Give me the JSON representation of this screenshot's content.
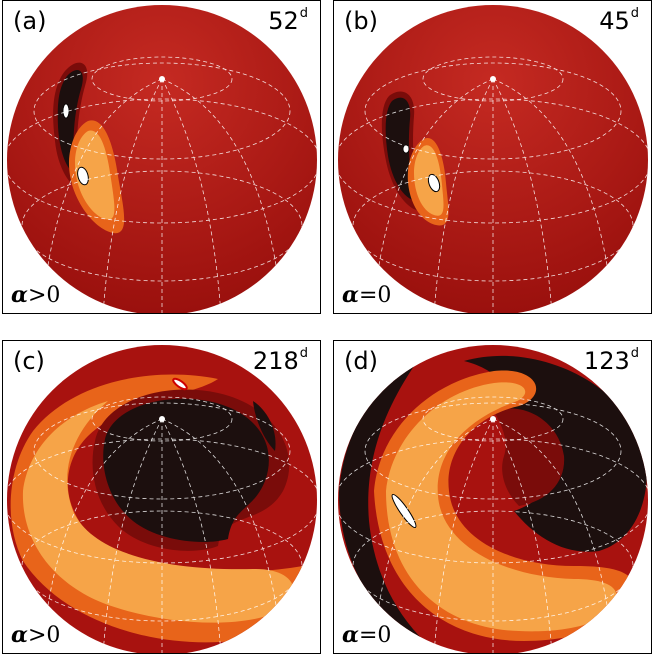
{
  "panels": [
    {
      "tag": "(a)",
      "time": "52",
      "time_unit": "d",
      "alpha_symbol": "α",
      "alpha_rel": ">0"
    },
    {
      "tag": "(b)",
      "time": "45",
      "time_unit": "d",
      "alpha_symbol": "α",
      "alpha_rel": "=0"
    },
    {
      "tag": "(c)",
      "time": "218",
      "time_unit": "d",
      "alpha_symbol": "α",
      "alpha_rel": ">0"
    },
    {
      "tag": "(d)",
      "time": "123",
      "time_unit": "d",
      "alpha_symbol": "α",
      "alpha_rel": "=0"
    }
  ],
  "colors": {
    "base": "#a8120f",
    "dark_red": "#7a0c0a",
    "black": "#1c0f0e",
    "orange": "#e8641a",
    "light_orange": "#f6a448",
    "white": "#ffffff"
  }
}
